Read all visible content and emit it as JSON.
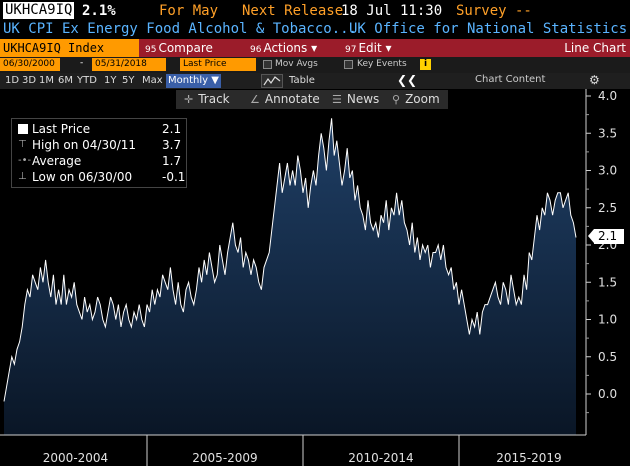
{
  "header": {
    "ticker": "UKHCA9IQ",
    "value": "2.1%",
    "for_label": "For May",
    "next_release_label": "Next Release",
    "next_release_value": "18 Jul 11:30",
    "survey_label": "Survey --",
    "description": "UK CPI Ex Energy Food Alcohol & Tobacco...",
    "source": "UK Office for National Statistics"
  },
  "toolbar": {
    "index_label": "UKHCA9IQ Index",
    "compare_key": "95",
    "compare_label": "Compare",
    "actions_key": "96",
    "actions_label": "Actions ▾",
    "edit_key": "97",
    "edit_label": "Edit ▾",
    "chart_type": "Line Chart"
  },
  "settings": {
    "start_date": "06/30/2000",
    "end_date": "05/31/2018",
    "price_select": "Last Price",
    "mov_avgs": "Mov Avgs",
    "key_events": "Key Events",
    "info": "i"
  },
  "periods": {
    "items": [
      "1D",
      "3D",
      "1M",
      "6M",
      "YTD",
      "1Y",
      "5Y",
      "Max"
    ],
    "frequency": "Monthly ▼",
    "table": "Table",
    "collapse": "❮❮",
    "chart_content": "Chart Content",
    "gear": "⚙"
  },
  "chart_toolbar": {
    "track": "Track",
    "annotate": "Annotate",
    "news": "News",
    "zoom": "Zoom"
  },
  "legend": {
    "last_price_label": "Last Price",
    "last_price_value": "2.1",
    "high_label": "High on 04/30/11",
    "high_value": "3.7",
    "average_label": "Average",
    "average_value": "1.7",
    "low_label": "Low on 06/30/00",
    "low_value": "-0.1"
  },
  "last_tag": "2.1",
  "colors": {
    "accent_orange": "#ff9a00",
    "toolbar_red": "#9b1c2a",
    "link_blue": "#5ab4ff",
    "area_top": "#1f3f66",
    "area_bottom": "#0a1626"
  },
  "chart_data": {
    "type": "area",
    "xlabel": "",
    "ylabel": "",
    "x_tick_labels": [
      "2000-2004",
      "2005-2009",
      "2010-2014",
      "2015-2019"
    ],
    "y_ticks": [
      "4.0",
      "3.5",
      "3.0",
      "2.5",
      "2.0",
      "1.5",
      "1.0",
      "0.5",
      "0.0"
    ],
    "ylim": [
      -0.5,
      4.0
    ],
    "x_start": "2000-06",
    "x_end": "2018-05",
    "grid": false,
    "series": [
      {
        "name": "Last Price",
        "values": [
          -0.1,
          0.1,
          0.3,
          0.5,
          0.4,
          0.6,
          0.7,
          0.9,
          1.2,
          1.4,
          1.3,
          1.6,
          1.5,
          1.4,
          1.7,
          1.5,
          1.8,
          1.5,
          1.3,
          1.6,
          1.2,
          1.4,
          1.2,
          1.6,
          1.2,
          1.4,
          1.3,
          1.5,
          1.2,
          1.1,
          1.0,
          1.3,
          1.1,
          1.2,
          1.0,
          1.1,
          1.3,
          1.2,
          1.0,
          0.9,
          1.1,
          1.3,
          1.2,
          1.0,
          1.2,
          0.9,
          1.1,
          1.2,
          1.0,
          0.9,
          1.1,
          1.0,
          1.2,
          1.0,
          0.9,
          1.2,
          1.1,
          1.4,
          1.2,
          1.4,
          1.3,
          1.6,
          1.5,
          1.4,
          1.7,
          1.4,
          1.2,
          1.5,
          1.2,
          1.1,
          1.4,
          1.5,
          1.3,
          1.2,
          1.4,
          1.7,
          1.5,
          1.8,
          1.6,
          1.9,
          1.7,
          1.5,
          1.6,
          2.0,
          1.8,
          1.6,
          1.9,
          2.1,
          2.3,
          2.0,
          1.9,
          2.1,
          1.7,
          1.9,
          1.8,
          1.6,
          1.8,
          1.7,
          1.5,
          1.4,
          1.7,
          1.8,
          1.9,
          2.2,
          2.5,
          2.8,
          3.1,
          2.7,
          2.9,
          3.1,
          2.8,
          3.0,
          2.8,
          3.2,
          3.0,
          2.7,
          2.9,
          2.5,
          2.8,
          3.0,
          2.8,
          3.2,
          3.5,
          3.3,
          3.0,
          3.4,
          3.7,
          3.2,
          3.4,
          3.1,
          2.8,
          3.0,
          3.3,
          2.9,
          3.0,
          2.6,
          2.8,
          2.5,
          2.4,
          2.2,
          2.6,
          2.3,
          2.2,
          2.3,
          2.1,
          2.4,
          2.3,
          2.6,
          2.2,
          2.5,
          2.4,
          2.7,
          2.4,
          2.6,
          2.3,
          2.2,
          2.0,
          2.3,
          1.9,
          2.1,
          1.8,
          2.0,
          1.9,
          2.0,
          1.7,
          1.9,
          1.9,
          2.0,
          1.8,
          2.0,
          1.7,
          1.6,
          1.7,
          1.4,
          1.5,
          1.2,
          1.4,
          1.2,
          1.0,
          0.8,
          1.0,
          0.9,
          1.1,
          0.8,
          1.1,
          1.2,
          1.2,
          1.3,
          1.4,
          1.5,
          1.3,
          1.2,
          1.5,
          1.4,
          1.2,
          1.6,
          1.4,
          1.2,
          1.3,
          1.2,
          1.6,
          1.4,
          1.9,
          1.8,
          2.1,
          2.4,
          2.2,
          2.5,
          2.4,
          2.7,
          2.6,
          2.4,
          2.6,
          2.7,
          2.7,
          2.5,
          2.6,
          2.7,
          2.4,
          2.3,
          2.1
        ]
      }
    ]
  }
}
